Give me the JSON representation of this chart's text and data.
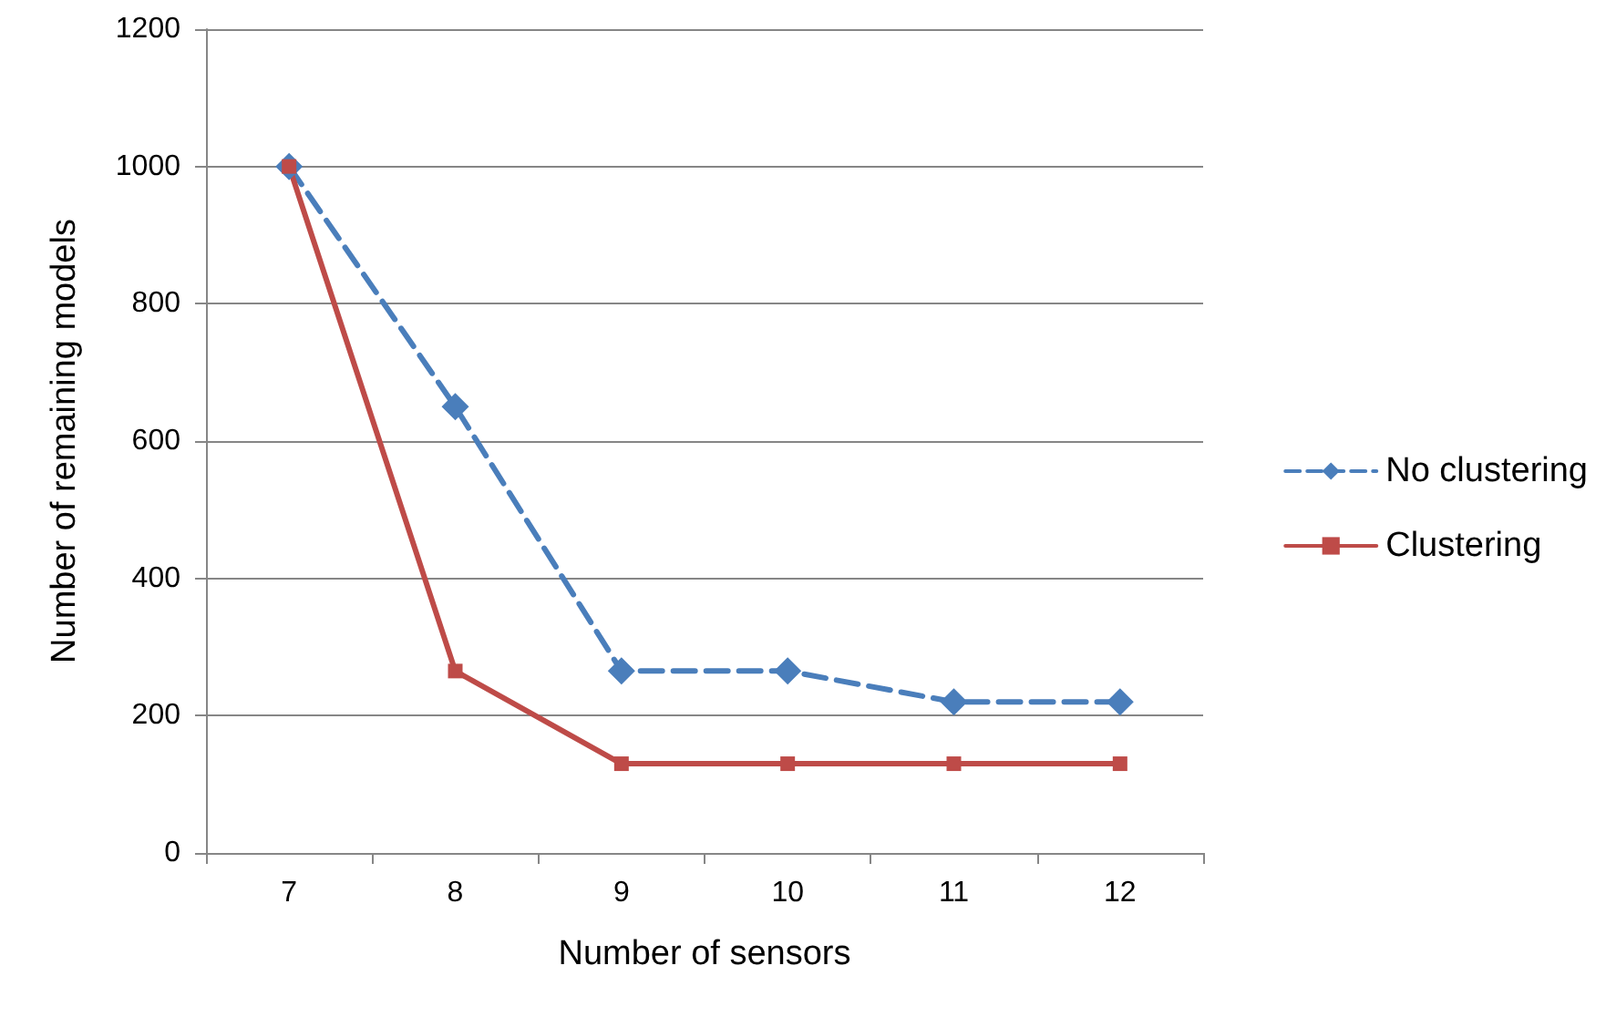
{
  "chart_data": {
    "type": "line",
    "xlabel": "Number of sensors",
    "ylabel": "Number of remaining models",
    "categories": [
      "7",
      "8",
      "9",
      "10",
      "11",
      "12"
    ],
    "series": [
      {
        "name": "No clustering",
        "color": "#4a7ebb",
        "values": [
          1000,
          650,
          265,
          265,
          220,
          220
        ],
        "marker": "diamond",
        "line_style": "dashed"
      },
      {
        "name": "Clustering",
        "color": "#be4b48",
        "values": [
          1000,
          265,
          130,
          130,
          130,
          130
        ],
        "marker": "square",
        "line_style": "solid"
      }
    ],
    "ylim": [
      0,
      1200
    ],
    "yticks": [
      0,
      200,
      400,
      600,
      800,
      1000,
      1200
    ],
    "grid": "y",
    "legend": "right"
  }
}
